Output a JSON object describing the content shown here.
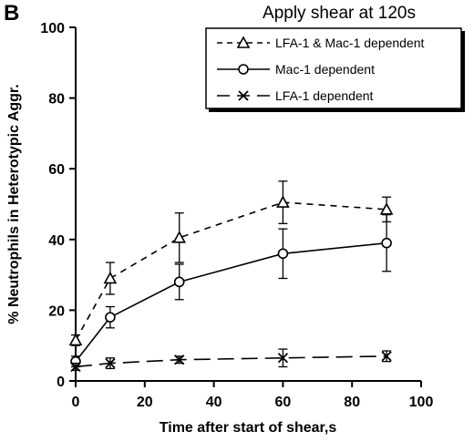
{
  "chart_data": {
    "type": "line",
    "panel_label": "B",
    "title": "Apply shear at 120s",
    "xlabel": "Time after start of shear,s",
    "ylabel": "% Neutrophils in Heterotypic Aggr.",
    "xlim": [
      0,
      100
    ],
    "ylim": [
      0,
      100
    ],
    "xticks": [
      0,
      20,
      40,
      60,
      80,
      100
    ],
    "yticks": [
      0,
      20,
      40,
      60,
      80,
      100
    ],
    "grid": false,
    "legend_position": "top-right",
    "x": [
      0,
      10,
      30,
      60,
      90
    ],
    "series": [
      {
        "name": "LFA-1 & Mac-1 dependent",
        "marker": "triangle",
        "line_style": "dashed",
        "values": [
          11.5,
          29,
          40.5,
          50.5,
          48.5
        ],
        "error": [
          1.5,
          4.5,
          7,
          6,
          3.5
        ]
      },
      {
        "name": "Mac-1 dependent",
        "marker": "circle",
        "line_style": "solid",
        "values": [
          5.5,
          18,
          28,
          36,
          39
        ],
        "error": [
          1.5,
          3,
          5,
          7,
          8
        ]
      },
      {
        "name": "LFA-1 dependent",
        "marker": "x",
        "line_style": "long-dashed",
        "values": [
          4,
          5,
          6,
          6.5,
          7
        ],
        "error": [
          1,
          1.5,
          1,
          2.5,
          1.5
        ]
      }
    ]
  }
}
